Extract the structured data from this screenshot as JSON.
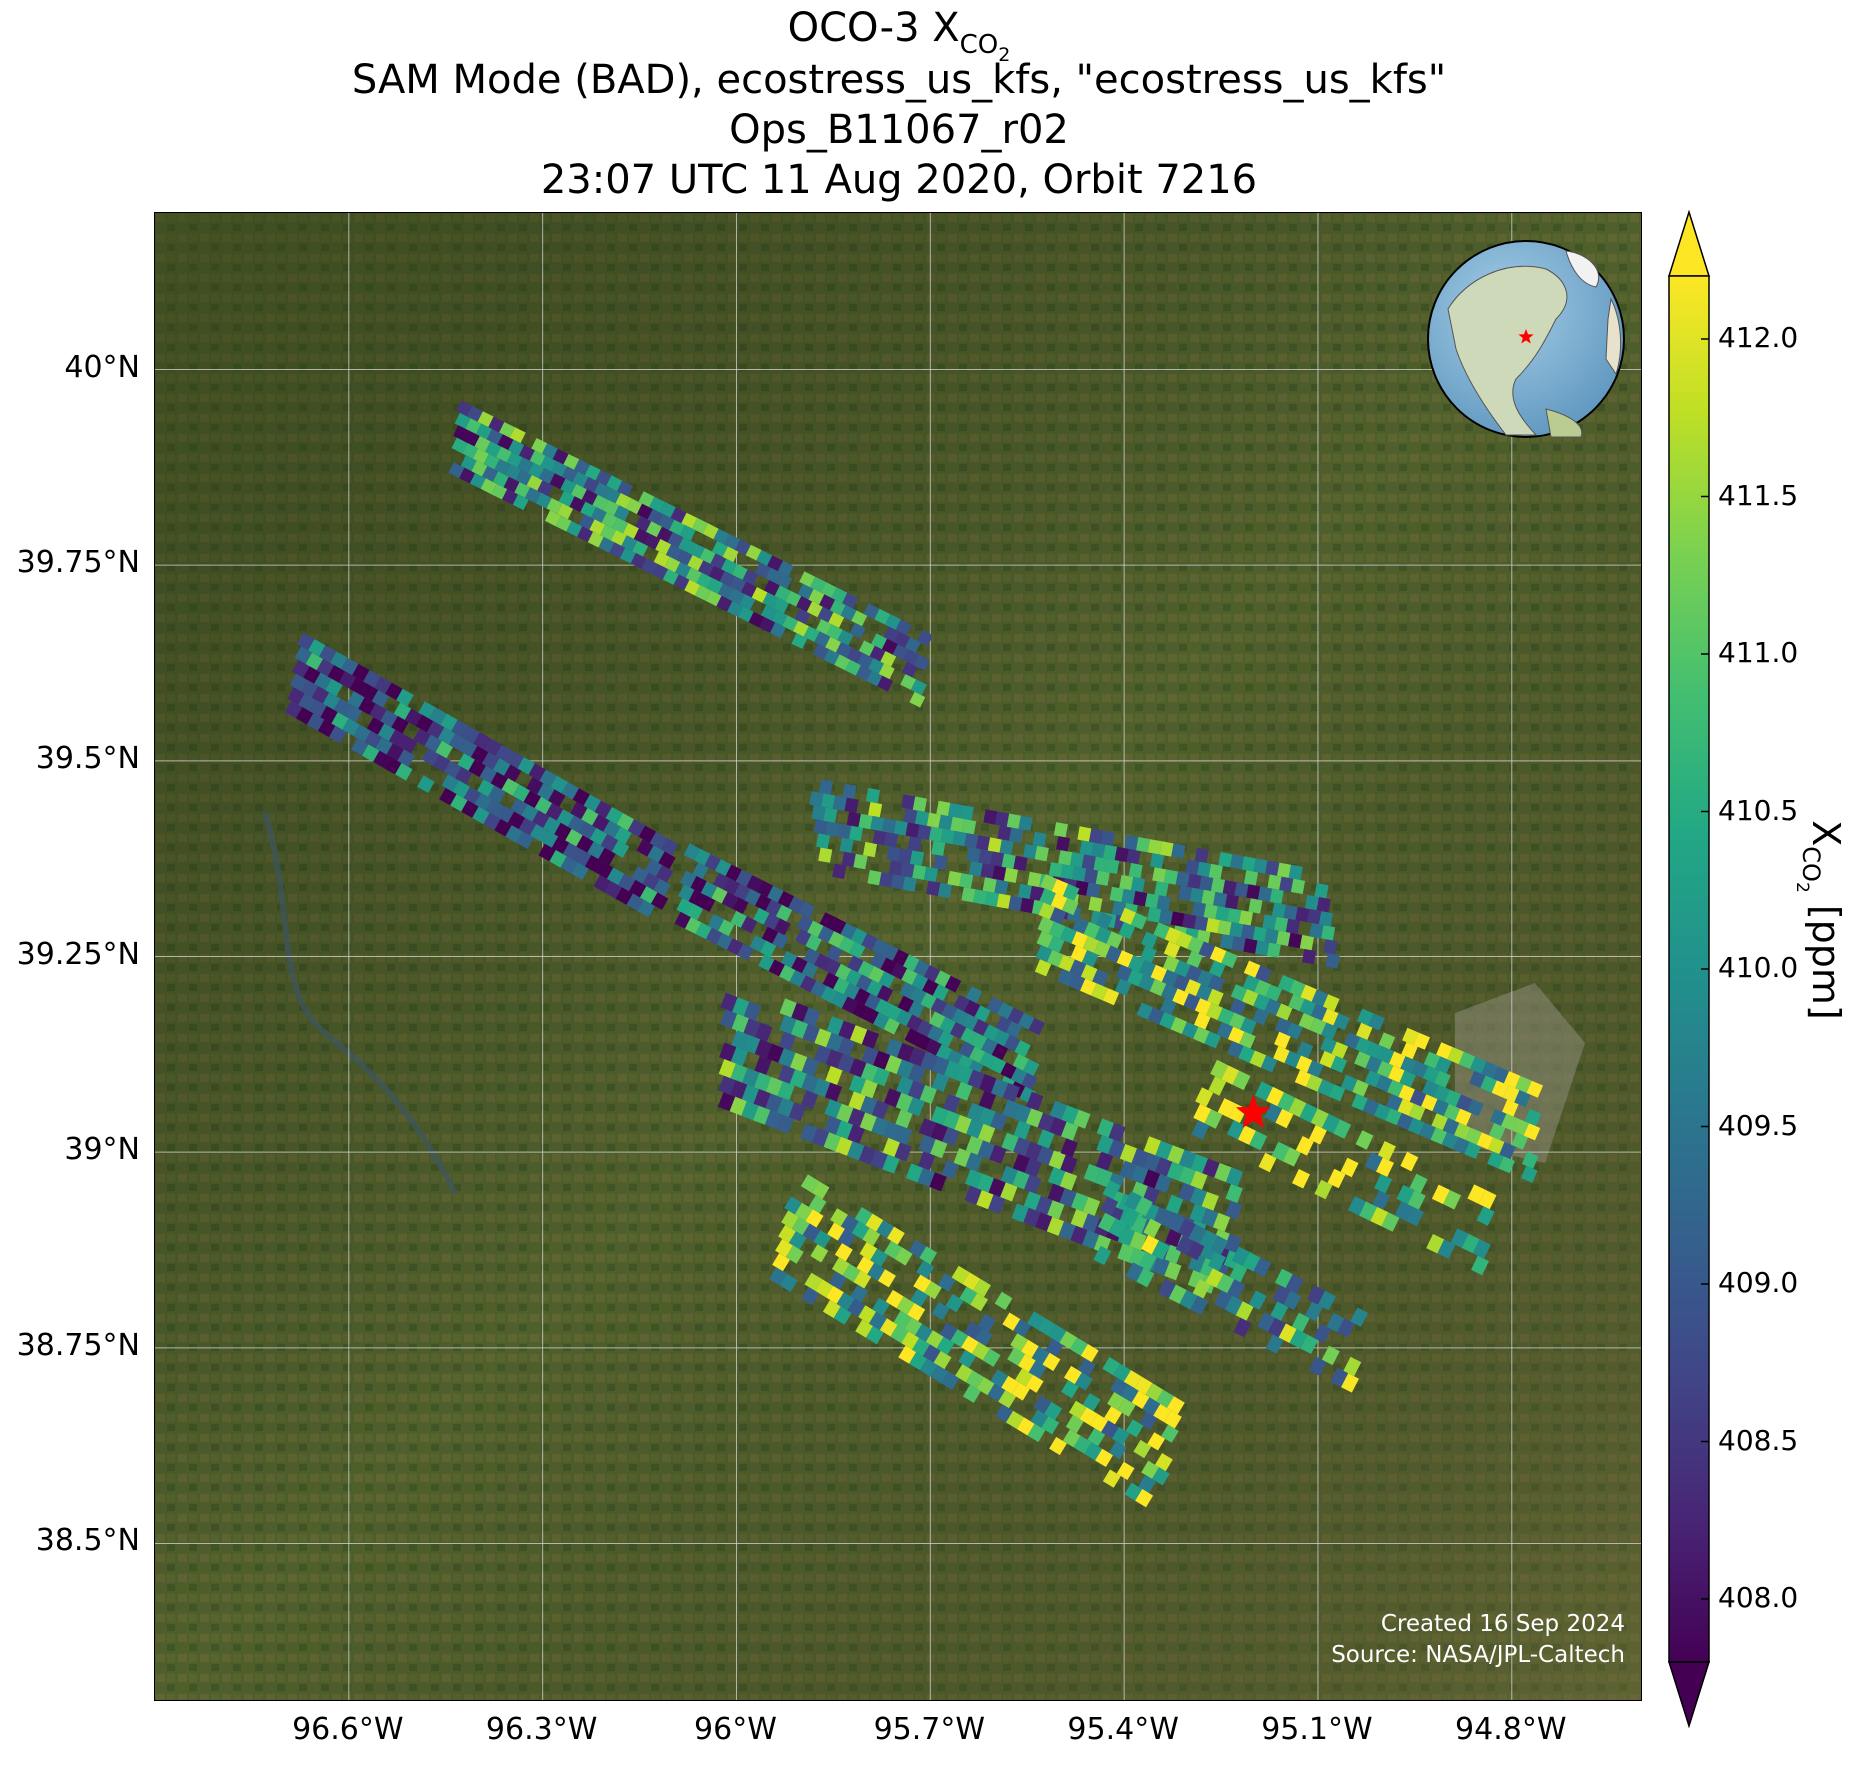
{
  "title": {
    "line1_prefix": "OCO-3 X",
    "line1_sub": "CO",
    "line1_subsub": "2",
    "line2": "SAM Mode (BAD), ecostress_us_kfs, \"ecostress_us_kfs\"",
    "line3": "Ops_B11067_r02",
    "line4": "23:07 UTC 11 Aug 2020, Orbit 7216"
  },
  "map": {
    "lon_range": [
      -96.9,
      -94.6
    ],
    "lat_range": [
      38.3,
      40.2
    ],
    "lon_ticks": [
      "96.6°W",
      "96.3°W",
      "96°W",
      "95.7°W",
      "95.4°W",
      "95.1°W",
      "94.8°W"
    ],
    "lon_tick_values": [
      -96.6,
      -96.3,
      -96.0,
      -95.7,
      -95.4,
      -95.1,
      -94.8
    ],
    "lat_ticks": [
      "40°N",
      "39.75°N",
      "39.5°N",
      "39.25°N",
      "39°N",
      "38.75°N",
      "38.5°N"
    ],
    "lat_tick_values": [
      40.0,
      39.75,
      39.5,
      39.25,
      39.0,
      38.75,
      38.5
    ],
    "target_marker": {
      "lon": -95.2,
      "lat": 39.05,
      "color": "#ff0000"
    },
    "credit_line1": "Created 16 Sep 2024",
    "credit_line2": "Source: NASA/JPL-Caltech",
    "inset_globe": {
      "marker_color": "#ff0000"
    }
  },
  "colorbar": {
    "ticks": [
      "412.0",
      "411.5",
      "411.0",
      "410.5",
      "410.0",
      "409.5",
      "409.0",
      "408.5",
      "408.0"
    ],
    "tick_values": [
      412.0,
      411.5,
      411.0,
      410.5,
      410.0,
      409.5,
      409.0,
      408.5,
      408.0
    ],
    "vmin": 407.8,
    "vmax": 412.2,
    "label_prefix": "X",
    "label_sub": "CO",
    "label_subsub": "2",
    "label_suffix": " [ppm]",
    "colormap": "viridis",
    "extend": "both"
  }
}
